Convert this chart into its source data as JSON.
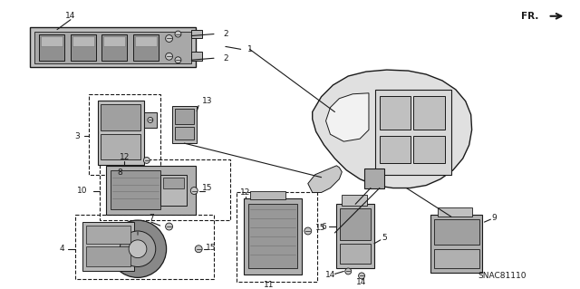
{
  "bg_color": "#ffffff",
  "line_color": "#1a1a1a",
  "gray_dark": "#555555",
  "gray_mid": "#888888",
  "gray_light": "#bbbbbb",
  "gray_box": "#dddddd",
  "watermark": "SNAC81110",
  "fig_width": 6.4,
  "fig_height": 3.19,
  "dpi": 100
}
